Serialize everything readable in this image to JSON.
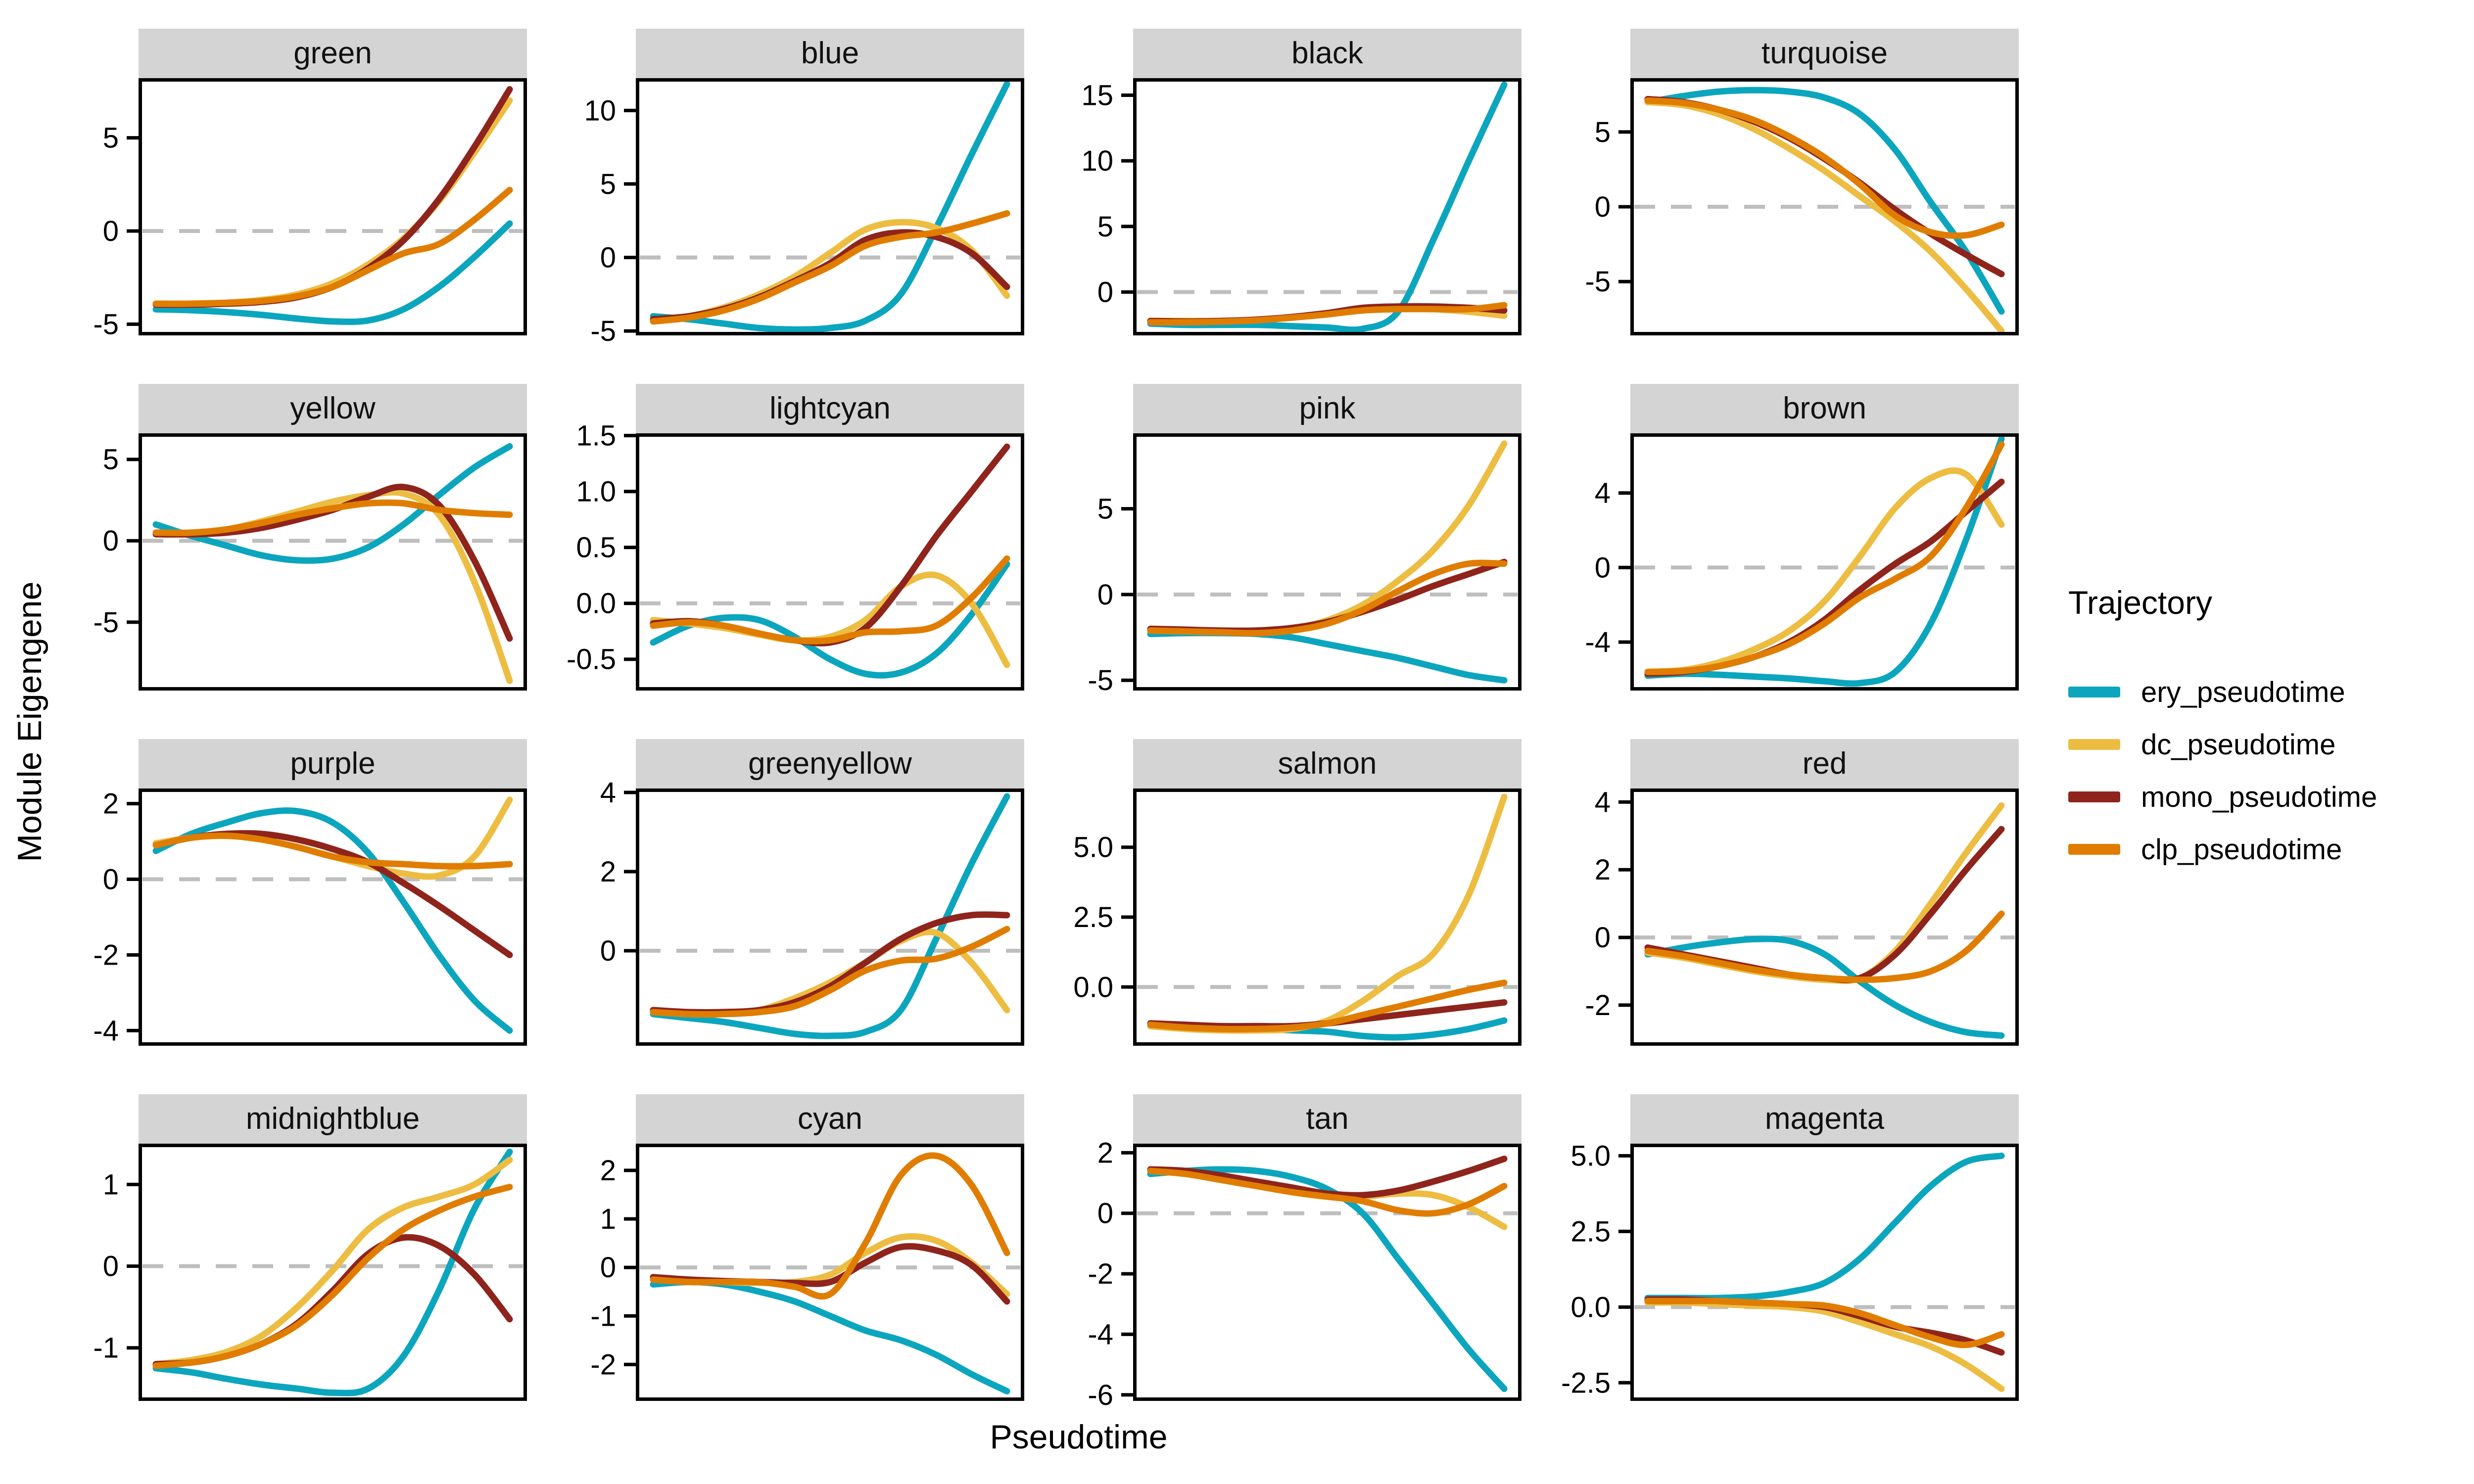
{
  "figure": {
    "x_axis_label": "Pseudotime",
    "y_axis_label": "Module Eigengene"
  },
  "legend": {
    "title": "Trajectory",
    "items": [
      {
        "key": "ery",
        "label": "ery_pseudotime",
        "color": "#0BA6BE"
      },
      {
        "key": "dc",
        "label": "dc_pseudotime",
        "color": "#EDBD42"
      },
      {
        "key": "mono",
        "label": "mono_pseudotime",
        "color": "#8F241C"
      },
      {
        "key": "clp",
        "label": "clp_pseudotime",
        "color": "#E07D00"
      }
    ]
  },
  "style": {
    "strip_background": "#D4D4D4",
    "panel_border": "#000000",
    "zero_line": "#BEBEBE"
  },
  "chart_data": {
    "type": "line",
    "title": "",
    "xlabel": "Pseudotime",
    "ylabel": "Module Eigengene",
    "x_range": [
      0,
      1
    ],
    "x_ticks": [],
    "grid": false,
    "legend_position": "right",
    "facet_layout": {
      "rows": 4,
      "cols": 4
    },
    "series_names": [
      "ery_pseudotime",
      "dc_pseudotime",
      "mono_pseudotime",
      "clp_pseudotime"
    ],
    "zero_reference_line": 0,
    "panels": [
      {
        "title": "green",
        "ylim": [
          -5.6,
          8.2
        ],
        "yticks": [
          "5",
          "0",
          "-5"
        ],
        "series": {
          "ery_pseudotime": [
            -4.2,
            -4.25,
            -4.35,
            -4.5,
            -4.7,
            -4.85,
            -4.8,
            -4.2,
            -3.0,
            -1.4,
            0.4
          ],
          "dc_pseudotime": [
            -3.9,
            -3.9,
            -3.85,
            -3.7,
            -3.4,
            -2.8,
            -1.8,
            -0.4,
            1.6,
            4.2,
            7.0
          ],
          "mono_pseudotime": [
            -3.95,
            -3.95,
            -3.9,
            -3.8,
            -3.55,
            -3.0,
            -2.0,
            -0.5,
            1.7,
            4.5,
            7.6
          ],
          "clp_pseudotime": [
            -3.9,
            -3.9,
            -3.85,
            -3.75,
            -3.5,
            -3.0,
            -2.1,
            -1.2,
            -0.7,
            0.6,
            2.2
          ]
        }
      },
      {
        "title": "blue",
        "ylim": [
          -5.3,
          12.2
        ],
        "yticks": [
          "10",
          "5",
          "0",
          "-5"
        ],
        "series": {
          "ery_pseudotime": [
            -4.0,
            -4.2,
            -4.5,
            -4.8,
            -4.9,
            -4.8,
            -4.3,
            -2.5,
            2.0,
            7.0,
            11.8
          ],
          "dc_pseudotime": [
            -4.3,
            -4.0,
            -3.4,
            -2.5,
            -1.3,
            0.3,
            1.9,
            2.4,
            2.0,
            0.5,
            -2.6
          ],
          "mono_pseudotime": [
            -4.2,
            -4.0,
            -3.5,
            -2.7,
            -1.6,
            -0.4,
            1.2,
            1.7,
            1.4,
            0.3,
            -2.0
          ],
          "clp_pseudotime": [
            -4.35,
            -4.1,
            -3.6,
            -2.8,
            -1.7,
            -0.6,
            0.8,
            1.4,
            1.7,
            2.3,
            3.0
          ]
        }
      },
      {
        "title": "black",
        "ylim": [
          -3.3,
          16.3
        ],
        "yticks": [
          "15",
          "10",
          "5",
          "0"
        ],
        "series": {
          "ery_pseudotime": [
            -2.4,
            -2.5,
            -2.5,
            -2.5,
            -2.6,
            -2.7,
            -2.8,
            -1.5,
            4.0,
            10.0,
            15.8
          ],
          "dc_pseudotime": [
            -2.2,
            -2.2,
            -2.2,
            -2.1,
            -1.9,
            -1.6,
            -1.3,
            -1.2,
            -1.3,
            -1.5,
            -1.8
          ],
          "mono_pseudotime": [
            -2.2,
            -2.25,
            -2.2,
            -2.1,
            -1.9,
            -1.6,
            -1.2,
            -1.1,
            -1.1,
            -1.2,
            -1.4
          ],
          "clp_pseudotime": [
            -2.3,
            -2.3,
            -2.25,
            -2.15,
            -1.95,
            -1.7,
            -1.4,
            -1.3,
            -1.3,
            -1.3,
            -1.0
          ]
        }
      },
      {
        "title": "turquoise",
        "ylim": [
          -8.6,
          8.6
        ],
        "yticks": [
          "5",
          "0",
          "-5"
        ],
        "series": {
          "ery_pseudotime": [
            7.0,
            7.4,
            7.7,
            7.8,
            7.7,
            7.3,
            6.2,
            3.8,
            0.3,
            -3.0,
            -7.0
          ],
          "dc_pseudotime": [
            7.0,
            6.8,
            6.2,
            5.2,
            3.9,
            2.4,
            0.7,
            -1.0,
            -3.0,
            -5.5,
            -8.3
          ],
          "mono_pseudotime": [
            7.2,
            7.0,
            6.5,
            5.7,
            4.6,
            3.2,
            1.6,
            -0.2,
            -1.8,
            -3.2,
            -4.5
          ],
          "clp_pseudotime": [
            7.1,
            6.95,
            6.5,
            5.8,
            4.7,
            3.3,
            1.5,
            -0.6,
            -1.7,
            -1.9,
            -1.2
          ]
        }
      },
      {
        "title": "yellow",
        "ylim": [
          -9.2,
          6.6
        ],
        "yticks": [
          "5",
          "0",
          "-5"
        ],
        "series": {
          "ery_pseudotime": [
            1.0,
            0.3,
            -0.3,
            -0.9,
            -1.2,
            -1.1,
            -0.4,
            1.0,
            2.8,
            4.5,
            5.8
          ],
          "dc_pseudotime": [
            0.5,
            0.5,
            0.7,
            1.2,
            1.8,
            2.4,
            2.8,
            2.9,
            1.6,
            -2.5,
            -8.6
          ],
          "mono_pseudotime": [
            0.4,
            0.4,
            0.5,
            0.8,
            1.3,
            1.9,
            2.7,
            3.3,
            2.2,
            -1.2,
            -6.0
          ],
          "clp_pseudotime": [
            0.5,
            0.5,
            0.7,
            1.1,
            1.6,
            2.0,
            2.3,
            2.3,
            1.9,
            1.7,
            1.6
          ]
        }
      },
      {
        "title": "lightcyan",
        "ylim": [
          -0.78,
          1.52
        ],
        "yticks": [
          "1.5",
          "1.0",
          "0.5",
          "0.0",
          "-0.5"
        ],
        "series": {
          "ery_pseudotime": [
            -0.35,
            -0.2,
            -0.13,
            -0.15,
            -0.3,
            -0.5,
            -0.63,
            -0.62,
            -0.45,
            -0.1,
            0.35
          ],
          "dc_pseudotime": [
            -0.15,
            -0.18,
            -0.22,
            -0.28,
            -0.33,
            -0.3,
            -0.15,
            0.15,
            0.25,
            0.0,
            -0.55
          ],
          "mono_pseudotime": [
            -0.18,
            -0.16,
            -0.2,
            -0.27,
            -0.33,
            -0.35,
            -0.22,
            0.15,
            0.6,
            1.0,
            1.4
          ],
          "clp_pseudotime": [
            -0.2,
            -0.17,
            -0.2,
            -0.27,
            -0.33,
            -0.33,
            -0.26,
            -0.25,
            -0.2,
            0.05,
            0.4
          ]
        }
      },
      {
        "title": "pink",
        "ylim": [
          -5.6,
          9.4
        ],
        "yticks": [
          "5",
          "0",
          "-5"
        ],
        "series": {
          "ery_pseudotime": [
            -2.3,
            -2.25,
            -2.25,
            -2.3,
            -2.5,
            -2.9,
            -3.3,
            -3.7,
            -4.2,
            -4.7,
            -5.0
          ],
          "dc_pseudotime": [
            -2.1,
            -2.15,
            -2.2,
            -2.2,
            -2.0,
            -1.5,
            -0.6,
            0.8,
            2.6,
            5.2,
            8.8
          ],
          "mono_pseudotime": [
            -2.0,
            -2.05,
            -2.1,
            -2.1,
            -1.95,
            -1.6,
            -1.0,
            -0.3,
            0.5,
            1.2,
            1.9
          ],
          "clp_pseudotime": [
            -2.1,
            -2.15,
            -2.2,
            -2.25,
            -2.1,
            -1.7,
            -0.9,
            0.2,
            1.2,
            1.8,
            1.8
          ]
        }
      },
      {
        "title": "brown",
        "ylim": [
          -6.6,
          7.2
        ],
        "yticks": [
          "4",
          "0",
          "-4"
        ],
        "series": {
          "ery_pseudotime": [
            -5.8,
            -5.7,
            -5.75,
            -5.85,
            -5.95,
            -6.1,
            -6.2,
            -5.6,
            -3.0,
            1.5,
            6.9
          ],
          "dc_pseudotime": [
            -5.6,
            -5.5,
            -5.1,
            -4.4,
            -3.4,
            -1.8,
            0.6,
            3.2,
            4.8,
            5.0,
            2.3
          ],
          "mono_pseudotime": [
            -5.7,
            -5.6,
            -5.3,
            -4.8,
            -4.0,
            -2.8,
            -1.2,
            0.2,
            1.4,
            3.0,
            4.6
          ],
          "clp_pseudotime": [
            -5.6,
            -5.55,
            -5.3,
            -4.8,
            -4.1,
            -3.0,
            -1.6,
            -0.6,
            0.6,
            3.2,
            6.6
          ]
        }
      },
      {
        "title": "purple",
        "ylim": [
          -4.4,
          2.4
        ],
        "yticks": [
          "2",
          "0",
          "-2",
          "-4"
        ],
        "series": {
          "ery_pseudotime": [
            0.75,
            1.2,
            1.5,
            1.75,
            1.8,
            1.5,
            0.7,
            -0.6,
            -2.0,
            -3.2,
            -4.0
          ],
          "dc_pseudotime": [
            0.95,
            1.1,
            1.15,
            1.05,
            0.85,
            0.6,
            0.35,
            0.15,
            0.1,
            0.6,
            2.1
          ],
          "mono_pseudotime": [
            0.9,
            1.1,
            1.2,
            1.2,
            1.05,
            0.8,
            0.45,
            -0.1,
            -0.7,
            -1.35,
            -2.0
          ],
          "clp_pseudotime": [
            0.9,
            1.1,
            1.15,
            1.05,
            0.85,
            0.6,
            0.45,
            0.4,
            0.35,
            0.35,
            0.4
          ]
        }
      },
      {
        "title": "greenyellow",
        "ylim": [
          -2.4,
          4.1
        ],
        "yticks": [
          "4",
          "2",
          "0"
        ],
        "series": {
          "ery_pseudotime": [
            -1.6,
            -1.7,
            -1.8,
            -1.95,
            -2.1,
            -2.15,
            -2.05,
            -1.5,
            0.3,
            2.2,
            3.9
          ],
          "dc_pseudotime": [
            -1.55,
            -1.6,
            -1.6,
            -1.5,
            -1.2,
            -0.8,
            -0.3,
            0.25,
            0.45,
            -0.3,
            -1.5
          ],
          "mono_pseudotime": [
            -1.5,
            -1.55,
            -1.55,
            -1.5,
            -1.3,
            -0.9,
            -0.3,
            0.3,
            0.7,
            0.9,
            0.9
          ],
          "clp_pseudotime": [
            -1.55,
            -1.6,
            -1.6,
            -1.55,
            -1.4,
            -1.0,
            -0.5,
            -0.25,
            -0.2,
            0.1,
            0.55
          ]
        }
      },
      {
        "title": "salmon",
        "ylim": [
          -2.1,
          7.1
        ],
        "yticks": [
          "5.0",
          "2.5",
          "0.0"
        ],
        "series": {
          "ery_pseudotime": [
            -1.4,
            -1.45,
            -1.5,
            -1.5,
            -1.55,
            -1.6,
            -1.75,
            -1.8,
            -1.7,
            -1.5,
            -1.2
          ],
          "dc_pseudotime": [
            -1.4,
            -1.5,
            -1.55,
            -1.55,
            -1.5,
            -1.2,
            -0.5,
            0.4,
            1.2,
            3.3,
            6.8
          ],
          "mono_pseudotime": [
            -1.3,
            -1.35,
            -1.4,
            -1.4,
            -1.4,
            -1.3,
            -1.15,
            -1.0,
            -0.85,
            -0.7,
            -0.55
          ],
          "clp_pseudotime": [
            -1.35,
            -1.45,
            -1.5,
            -1.5,
            -1.45,
            -1.3,
            -1.0,
            -0.7,
            -0.4,
            -0.1,
            0.15
          ]
        }
      },
      {
        "title": "red",
        "ylim": [
          -3.2,
          4.4
        ],
        "yticks": [
          "4",
          "2",
          "0",
          "-2"
        ],
        "series": {
          "ery_pseudotime": [
            -0.5,
            -0.3,
            -0.15,
            -0.05,
            -0.1,
            -0.5,
            -1.3,
            -2.0,
            -2.5,
            -2.8,
            -2.9
          ],
          "dc_pseudotime": [
            -0.45,
            -0.6,
            -0.8,
            -1.0,
            -1.15,
            -1.25,
            -1.2,
            -0.4,
            1.0,
            2.5,
            3.9
          ],
          "mono_pseudotime": [
            -0.3,
            -0.5,
            -0.7,
            -0.9,
            -1.1,
            -1.2,
            -1.2,
            -0.5,
            0.7,
            2.0,
            3.2
          ],
          "clp_pseudotime": [
            -0.4,
            -0.55,
            -0.75,
            -0.95,
            -1.1,
            -1.2,
            -1.25,
            -1.2,
            -1.0,
            -0.4,
            0.7
          ]
        }
      },
      {
        "title": "midnightblue",
        "ylim": [
          -1.65,
          1.5
        ],
        "yticks": [
          "1",
          "0",
          "-1"
        ],
        "series": {
          "ery_pseudotime": [
            -1.25,
            -1.3,
            -1.38,
            -1.45,
            -1.5,
            -1.55,
            -1.5,
            -1.1,
            -0.3,
            0.7,
            1.4
          ],
          "dc_pseudotime": [
            -1.2,
            -1.15,
            -1.05,
            -0.85,
            -0.5,
            -0.05,
            0.45,
            0.72,
            0.85,
            1.0,
            1.3
          ],
          "mono_pseudotime": [
            -1.2,
            -1.18,
            -1.1,
            -0.95,
            -0.7,
            -0.3,
            0.15,
            0.35,
            0.25,
            -0.1,
            -0.65
          ],
          "clp_pseudotime": [
            -1.22,
            -1.18,
            -1.1,
            -0.95,
            -0.72,
            -0.35,
            0.1,
            0.45,
            0.68,
            0.85,
            0.97
          ]
        }
      },
      {
        "title": "cyan",
        "ylim": [
          -2.75,
          2.55
        ],
        "yticks": [
          "2",
          "1",
          "0",
          "-1",
          "-2"
        ],
        "series": {
          "ery_pseudotime": [
            -0.35,
            -0.3,
            -0.35,
            -0.5,
            -0.7,
            -1.0,
            -1.3,
            -1.5,
            -1.8,
            -2.2,
            -2.55
          ],
          "dc_pseudotime": [
            -0.25,
            -0.28,
            -0.3,
            -0.32,
            -0.3,
            -0.15,
            0.3,
            0.62,
            0.55,
            0.1,
            -0.55
          ],
          "mono_pseudotime": [
            -0.2,
            -0.25,
            -0.28,
            -0.3,
            -0.32,
            -0.3,
            0.1,
            0.42,
            0.35,
            0.05,
            -0.7
          ],
          "clp_pseudotime": [
            -0.25,
            -0.3,
            -0.3,
            -0.3,
            -0.4,
            -0.55,
            0.5,
            1.9,
            2.3,
            1.7,
            0.3
          ]
        }
      },
      {
        "title": "tan",
        "ylim": [
          -6.2,
          2.3
        ],
        "yticks": [
          "2",
          "0",
          "-2",
          "-4",
          "-6"
        ],
        "series": {
          "ery_pseudotime": [
            1.3,
            1.4,
            1.45,
            1.4,
            1.2,
            0.8,
            0.0,
            -1.5,
            -3.0,
            -4.5,
            -5.8
          ],
          "dc_pseudotime": [
            1.4,
            1.3,
            1.1,
            0.9,
            0.7,
            0.55,
            0.55,
            0.65,
            0.6,
            0.2,
            -0.45
          ],
          "mono_pseudotime": [
            1.45,
            1.4,
            1.25,
            1.05,
            0.85,
            0.65,
            0.6,
            0.75,
            1.05,
            1.4,
            1.8
          ],
          "clp_pseudotime": [
            1.4,
            1.3,
            1.1,
            0.9,
            0.7,
            0.55,
            0.4,
            0.1,
            0.0,
            0.3,
            0.9
          ]
        }
      },
      {
        "title": "magenta",
        "ylim": [
          -3.1,
          5.4
        ],
        "yticks": [
          "5.0",
          "2.5",
          "0.0",
          "-2.5"
        ],
        "series": {
          "ery_pseudotime": [
            0.3,
            0.3,
            0.3,
            0.35,
            0.5,
            0.8,
            1.6,
            2.8,
            4.0,
            4.8,
            5.0
          ],
          "dc_pseudotime": [
            0.15,
            0.15,
            0.1,
            0.05,
            0.0,
            -0.15,
            -0.5,
            -0.9,
            -1.3,
            -1.9,
            -2.7
          ],
          "mono_pseudotime": [
            0.25,
            0.25,
            0.2,
            0.15,
            0.1,
            0.0,
            -0.3,
            -0.65,
            -0.85,
            -1.1,
            -1.5
          ],
          "clp_pseudotime": [
            0.2,
            0.2,
            0.2,
            0.15,
            0.1,
            0.05,
            -0.2,
            -0.6,
            -1.0,
            -1.25,
            -0.9
          ]
        }
      }
    ]
  }
}
